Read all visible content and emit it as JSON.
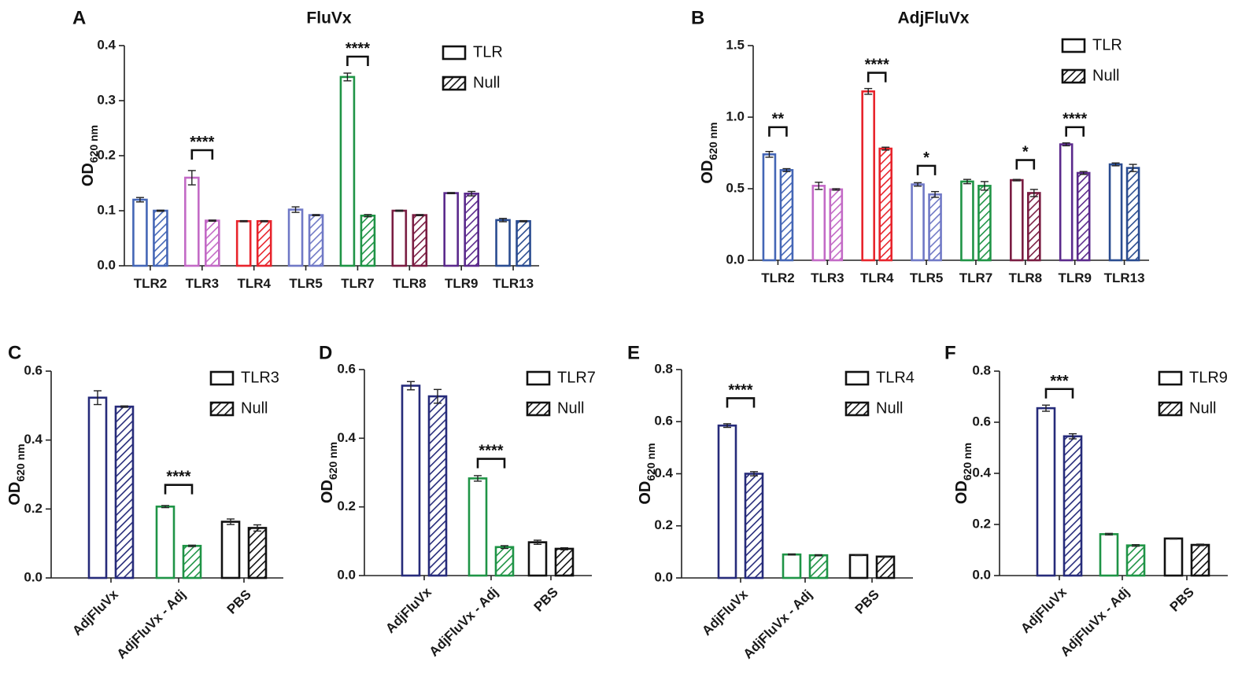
{
  "chart_data": [
    {
      "type": "bar",
      "panel": "A",
      "title": "FluVx",
      "ylabel": "OD",
      "ylabel_sub": "620 nm",
      "ylim": [
        0,
        0.4
      ],
      "yticks": [
        "0.0",
        "0.1",
        "0.2",
        "0.3",
        "0.4"
      ],
      "categories": [
        "TLR2",
        "TLR3",
        "TLR4",
        "TLR5",
        "TLR7",
        "TLR8",
        "TLR9",
        "TLR13"
      ],
      "category_colors": [
        "#4466b6",
        "#c36ac6",
        "#e8242c",
        "#7079c6",
        "#1f9446",
        "#7a1d42",
        "#5b2a8c",
        "#2a4c90"
      ],
      "series": [
        {
          "name": "TLR",
          "pattern": "open",
          "values": [
            0.12,
            0.16,
            0.081,
            0.102,
            0.343,
            0.1,
            0.132,
            0.083
          ],
          "errors": [
            0.004,
            0.013,
            0.001,
            0.005,
            0.007,
            0.001,
            0.001,
            0.003
          ]
        },
        {
          "name": "Null",
          "pattern": "hatched",
          "values": [
            0.1,
            0.082,
            0.081,
            0.092,
            0.091,
            0.092,
            0.131,
            0.081
          ],
          "errors": [
            0.001,
            0.001,
            0.001,
            0.001,
            0.002,
            0.001,
            0.004,
            0.001
          ]
        }
      ],
      "significance": [
        {
          "category": "TLR3",
          "label": "****",
          "y": 0.21
        },
        {
          "category": "TLR7",
          "label": "****",
          "y": 0.38
        }
      ],
      "legend": [
        "TLR",
        "Null"
      ]
    },
    {
      "type": "bar",
      "panel": "B",
      "title": "AdjFluVx",
      "ylabel": "OD",
      "ylabel_sub": "620 nm",
      "ylim": [
        0,
        1.5
      ],
      "yticks": [
        "0.0",
        "0.5",
        "1.0",
        "1.5"
      ],
      "categories": [
        "TLR2",
        "TLR3",
        "TLR4",
        "TLR5",
        "TLR7",
        "TLR8",
        "TLR9",
        "TLR13"
      ],
      "category_colors": [
        "#4466b6",
        "#c36ac6",
        "#e8242c",
        "#7079c6",
        "#1f9446",
        "#7a1d42",
        "#5b2a8c",
        "#2a4c90"
      ],
      "series": [
        {
          "name": "TLR",
          "pattern": "open",
          "values": [
            0.74,
            0.52,
            1.18,
            0.53,
            0.55,
            0.56,
            0.81,
            0.67
          ],
          "errors": [
            0.02,
            0.025,
            0.02,
            0.012,
            0.015,
            0.005,
            0.01,
            0.01
          ]
        },
        {
          "name": "Null",
          "pattern": "hatched",
          "values": [
            0.63,
            0.495,
            0.78,
            0.46,
            0.52,
            0.47,
            0.61,
            0.645
          ],
          "errors": [
            0.01,
            0.005,
            0.01,
            0.02,
            0.03,
            0.025,
            0.01,
            0.025
          ]
        }
      ],
      "significance": [
        {
          "category": "TLR2",
          "label": "**",
          "y": 0.93
        },
        {
          "category": "TLR4",
          "label": "****",
          "y": 1.31
        },
        {
          "category": "TLR5",
          "label": "*",
          "y": 0.66
        },
        {
          "category": "TLR8",
          "label": "*",
          "y": 0.7
        },
        {
          "category": "TLR9",
          "label": "****",
          "y": 0.93
        }
      ],
      "legend": [
        "TLR",
        "Null"
      ]
    },
    {
      "type": "bar",
      "panel": "C",
      "title": "",
      "ylabel": "OD",
      "ylabel_sub": "620 nm",
      "ylim": [
        0,
        0.6
      ],
      "yticks": [
        "0.0",
        "0.2",
        "0.4",
        "0.6"
      ],
      "categories": [
        "AdjFluVx",
        "AdjFluVx - Adj",
        "PBS"
      ],
      "category_colors": [
        "#262b7a",
        "#1f9446",
        "#111111"
      ],
      "series": [
        {
          "name": "TLR3",
          "pattern": "open",
          "values": [
            0.523,
            0.207,
            0.163
          ],
          "errors": [
            0.02,
            0.003,
            0.008
          ]
        },
        {
          "name": "Null",
          "pattern": "hatched",
          "values": [
            0.497,
            0.093,
            0.145
          ],
          "errors": [
            0.002,
            0.002,
            0.009
          ]
        }
      ],
      "significance": [
        {
          "category": "AdjFluVx - Adj",
          "label": "****",
          "y": 0.27
        }
      ],
      "legend": [
        "TLR3",
        "Null"
      ]
    },
    {
      "type": "bar",
      "panel": "D",
      "title": "",
      "ylabel": "OD",
      "ylabel_sub": "620 nm",
      "ylim": [
        0,
        0.6
      ],
      "yticks": [
        "0.0",
        "0.2",
        "0.4",
        "0.6"
      ],
      "categories": [
        "AdjFluVx",
        "AdjFluVx - Adj",
        "PBS"
      ],
      "category_colors": [
        "#262b7a",
        "#1f9446",
        "#111111"
      ],
      "series": [
        {
          "name": "TLR7",
          "pattern": "open",
          "values": [
            0.553,
            0.283,
            0.097
          ],
          "errors": [
            0.012,
            0.008,
            0.006
          ]
        },
        {
          "name": "Null",
          "pattern": "hatched",
          "values": [
            0.522,
            0.083,
            0.078
          ],
          "errors": [
            0.02,
            0.004,
            0.003
          ]
        }
      ],
      "significance": [
        {
          "category": "AdjFluVx - Adj",
          "label": "****",
          "y": 0.34
        }
      ],
      "legend": [
        "TLR7",
        "Null"
      ]
    },
    {
      "type": "bar",
      "panel": "E",
      "title": "",
      "ylabel": "OD",
      "ylabel_sub": "620 nm",
      "ylim": [
        0,
        0.8
      ],
      "yticks": [
        "0.0",
        "0.2",
        "0.4",
        "0.6",
        "0.8"
      ],
      "categories": [
        "AdjFluVx",
        "AdjFluVx - Adj",
        "PBS"
      ],
      "category_colors": [
        "#262b7a",
        "#1f9446",
        "#111111"
      ],
      "series": [
        {
          "name": "TLR4",
          "pattern": "open",
          "values": [
            0.585,
            0.09,
            0.088
          ],
          "errors": [
            0.007,
            0.002,
            0.002
          ]
        },
        {
          "name": "Null",
          "pattern": "hatched",
          "values": [
            0.4,
            0.087,
            0.082
          ],
          "errors": [
            0.008,
            0.002,
            0.002
          ]
        }
      ],
      "significance": [
        {
          "category": "AdjFluVx",
          "label": "****",
          "y": 0.69
        }
      ],
      "legend": [
        "TLR4",
        "Null"
      ]
    },
    {
      "type": "bar",
      "panel": "F",
      "title": "",
      "ylabel": "OD",
      "ylabel_sub": "620 nm",
      "ylim": [
        0,
        0.8
      ],
      "yticks": [
        "0.0",
        "0.2",
        "0.4",
        "0.6",
        "0.8"
      ],
      "categories": [
        "AdjFluVx",
        "AdjFluVx - Adj",
        "PBS"
      ],
      "category_colors": [
        "#262b7a",
        "#1f9446",
        "#111111"
      ],
      "series": [
        {
          "name": "TLR9",
          "pattern": "open",
          "values": [
            0.655,
            0.162,
            0.145
          ],
          "errors": [
            0.012,
            0.003,
            0.002
          ]
        },
        {
          "name": "Null",
          "pattern": "hatched",
          "values": [
            0.545,
            0.118,
            0.12
          ],
          "errors": [
            0.01,
            0.003,
            0.003
          ]
        }
      ],
      "significance": [
        {
          "category": "AdjFluVx",
          "label": "***",
          "y": 0.73
        }
      ],
      "legend": [
        "TLR9",
        "Null"
      ]
    }
  ]
}
